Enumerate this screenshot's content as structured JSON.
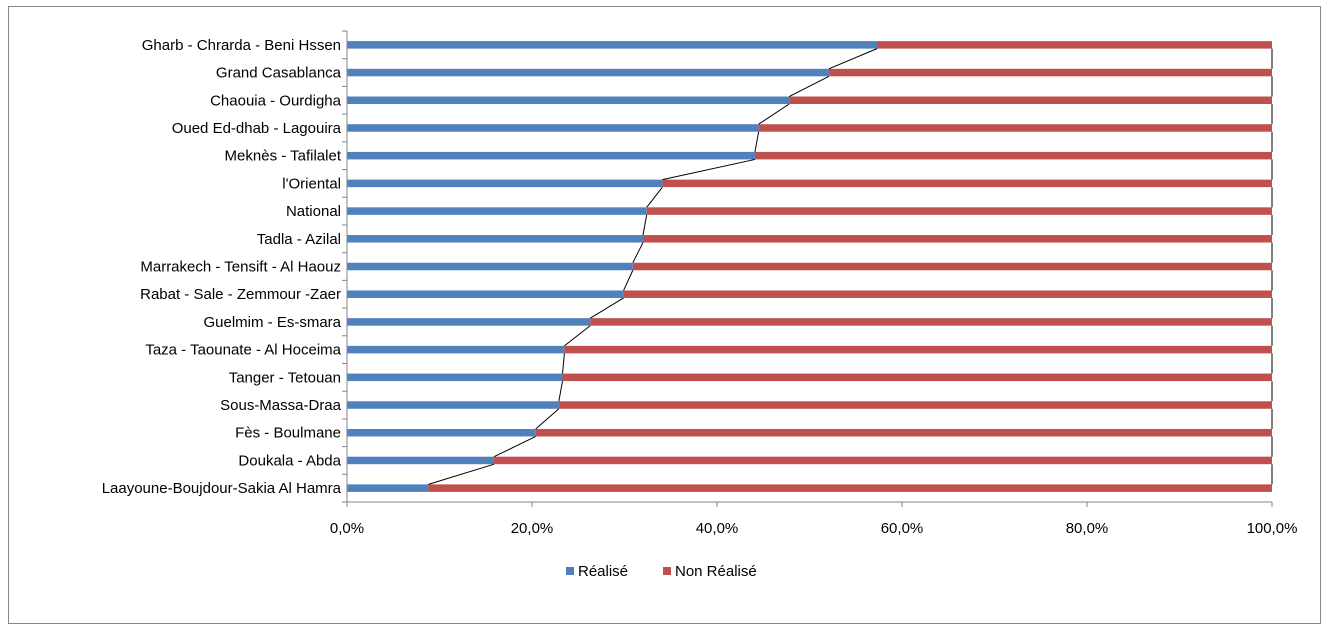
{
  "chart_data": {
    "type": "bar",
    "orientation": "horizontal",
    "stacked": "percent",
    "categories": [
      "Gharb - Chrarda - Beni Hssen",
      "Grand Casablanca",
      "Chaouia - Ourdigha",
      "Oued Ed-dhab - Lagouira",
      "Meknès - Tafilalet",
      "l'Oriental",
      "National",
      "Tadla - Azilal",
      "Marrakech - Tensift - Al Haouz",
      "Rabat - Sale - Zemmour -Zaer",
      "Guelmim - Es-smara",
      "Taza - Taounate - Al Hoceima",
      "Tanger - Tetouan",
      "Sous-Massa-Draa",
      "Fès - Boulmane",
      "Doukala - Abda",
      "Laayoune-Boujdour-Sakia Al Hamra"
    ],
    "series": [
      {
        "name": "Réalisé",
        "color": "#4f81bd",
        "values": [
          57.3,
          52.1,
          47.8,
          44.5,
          44.1,
          34.1,
          32.4,
          32.0,
          30.9,
          29.9,
          26.3,
          23.5,
          23.3,
          22.9,
          20.4,
          15.9,
          8.8
        ]
      },
      {
        "name": "Non Réalisé",
        "color": "#c0504d",
        "values": [
          42.7,
          47.9,
          52.2,
          55.5,
          55.9,
          65.9,
          67.6,
          68.0,
          69.1,
          70.1,
          73.7,
          76.5,
          76.7,
          77.1,
          79.6,
          84.1,
          91.2
        ]
      }
    ],
    "xlim": [
      0,
      100
    ],
    "xticks": [
      0,
      20,
      40,
      60,
      80,
      100
    ],
    "xtick_labels": [
      "0,0%",
      "20,0%",
      "40,0%",
      "60,0%",
      "80,0%",
      "100,0%"
    ],
    "series_lines": true,
    "series_line_color": "#000000",
    "gridlines": false,
    "legend_position": "bottom",
    "title": "",
    "xlabel": "",
    "ylabel": ""
  }
}
